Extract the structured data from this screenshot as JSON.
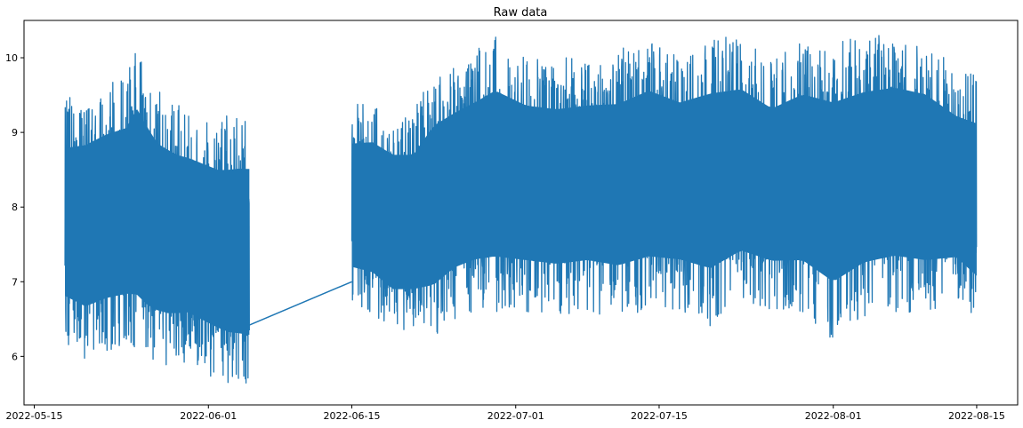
{
  "chart_data": {
    "type": "line",
    "title": "Raw data",
    "xlabel": "",
    "ylabel": "",
    "x_axis_type": "date",
    "xlim": [
      "2022-05-14",
      "2022-08-19"
    ],
    "ylim": [
      5.35,
      10.5
    ],
    "grid": false,
    "legend": "none",
    "x_ticks": [
      "2022-05-15",
      "2022-06-01",
      "2022-06-15",
      "2022-07-01",
      "2022-07-15",
      "2022-08-01",
      "2022-08-15"
    ],
    "y_ticks": [
      6,
      7,
      8,
      9,
      10
    ],
    "series": [
      {
        "name": "",
        "color": "#1f77b4",
        "segments": [
          {
            "start": "2022-05-18",
            "end": "2022-06-05",
            "upper_envelope": [
              [
                "2022-05-18",
                9.45
              ],
              [
                "2022-05-20",
                9.55
              ],
              [
                "2022-05-22",
                9.7
              ],
              [
                "2022-05-24",
                9.8
              ],
              [
                "2022-05-25",
                10.15
              ],
              [
                "2022-05-27",
                9.6
              ],
              [
                "2022-05-29",
                9.4
              ],
              [
                "2022-05-31",
                9.3
              ],
              [
                "2022-06-02",
                9.2
              ],
              [
                "2022-06-04",
                9.25
              ],
              [
                "2022-06-05",
                9.25
              ]
            ],
            "lower_envelope": [
              [
                "2022-05-18",
                6.15
              ],
              [
                "2022-05-20",
                5.95
              ],
              [
                "2022-05-22",
                6.05
              ],
              [
                "2022-05-24",
                6.1
              ],
              [
                "2022-05-26",
                5.9
              ],
              [
                "2022-05-28",
                5.85
              ],
              [
                "2022-05-30",
                5.9
              ],
              [
                "2022-06-01",
                5.75
              ],
              [
                "2022-06-03",
                5.6
              ],
              [
                "2022-06-05",
                5.55
              ]
            ]
          },
          {
            "start": "2022-06-05",
            "end": "2022-06-15",
            "bridge": [
              [
                "2022-06-05",
                6.42
              ],
              [
                "2022-06-15",
                7.0
              ]
            ]
          },
          {
            "start": "2022-06-15",
            "end": "2022-08-15",
            "upper_envelope": [
              [
                "2022-06-15",
                9.4
              ],
              [
                "2022-06-17",
                9.45
              ],
              [
                "2022-06-19",
                9.3
              ],
              [
                "2022-06-21",
                9.3
              ],
              [
                "2022-06-23",
                9.8
              ],
              [
                "2022-06-25",
                9.95
              ],
              [
                "2022-06-27",
                10.1
              ],
              [
                "2022-06-29",
                10.3
              ],
              [
                "2022-07-02",
                10.05
              ],
              [
                "2022-07-05",
                10.0
              ],
              [
                "2022-07-08",
                10.05
              ],
              [
                "2022-07-11",
                10.1
              ],
              [
                "2022-07-14",
                10.3
              ],
              [
                "2022-07-17",
                10.1
              ],
              [
                "2022-07-20",
                10.3
              ],
              [
                "2022-07-23",
                10.3
              ],
              [
                "2022-07-26",
                10.0
              ],
              [
                "2022-07-29",
                10.25
              ],
              [
                "2022-08-01",
                10.2
              ],
              [
                "2022-08-04",
                10.3
              ],
              [
                "2022-08-07",
                10.35
              ],
              [
                "2022-08-10",
                10.25
              ],
              [
                "2022-08-13",
                9.85
              ],
              [
                "2022-08-15",
                9.8
              ]
            ],
            "lower_envelope": [
              [
                "2022-06-15",
                6.65
              ],
              [
                "2022-06-17",
                6.55
              ],
              [
                "2022-06-19",
                6.3
              ],
              [
                "2022-06-21",
                6.3
              ],
              [
                "2022-06-23",
                6.25
              ],
              [
                "2022-06-25",
                6.5
              ],
              [
                "2022-06-27",
                6.6
              ],
              [
                "2022-06-29",
                6.6
              ],
              [
                "2022-07-02",
                6.6
              ],
              [
                "2022-07-05",
                6.55
              ],
              [
                "2022-07-08",
                6.6
              ],
              [
                "2022-07-11",
                6.5
              ],
              [
                "2022-07-14",
                6.6
              ],
              [
                "2022-07-17",
                6.6
              ],
              [
                "2022-07-20",
                6.4
              ],
              [
                "2022-07-23",
                6.7
              ],
              [
                "2022-07-26",
                6.6
              ],
              [
                "2022-07-29",
                6.55
              ],
              [
                "2022-08-01",
                6.2
              ],
              [
                "2022-08-04",
                6.5
              ],
              [
                "2022-08-07",
                6.6
              ],
              [
                "2022-08-10",
                6.55
              ],
              [
                "2022-08-13",
                6.7
              ],
              [
                "2022-08-15",
                6.4
              ]
            ]
          }
        ]
      }
    ]
  }
}
